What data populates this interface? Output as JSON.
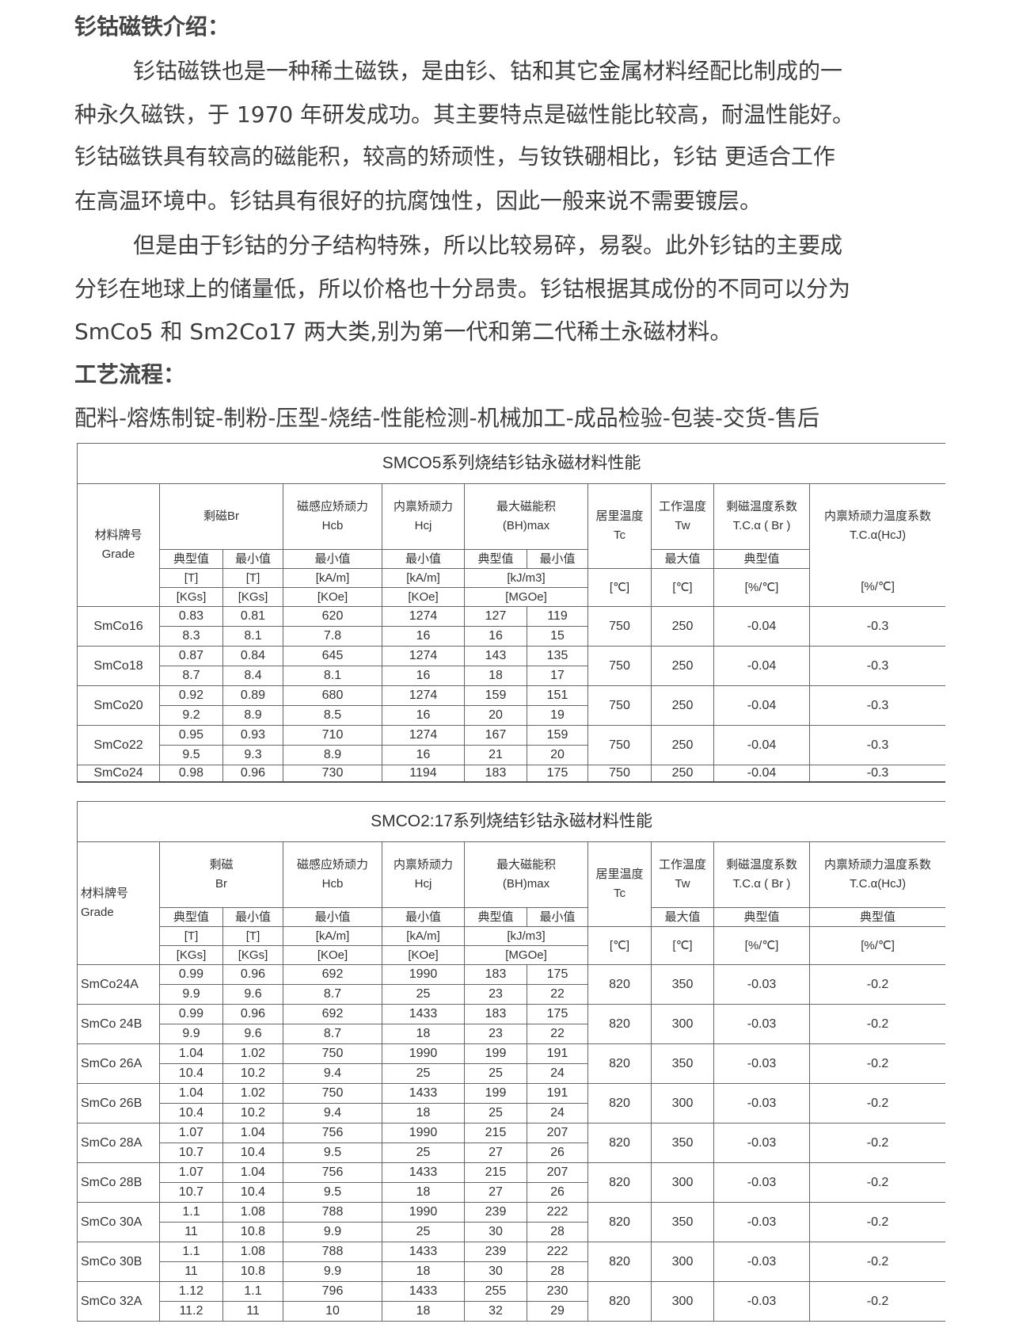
{
  "intro": {
    "heading": "钐钴磁铁介绍：",
    "lines": [
      "钐钴磁铁也是一种稀土磁铁，是由钐、钴和其它金属材料经配比制成的一",
      "种永久磁铁，于 1970 年研发成功。其主要特点是磁性能比较高，耐温性能好。",
      "钐钴磁铁具有较高的磁能积，较高的矫顽性，与钕铁硼相比，钐钴 更适合工作",
      "在高温环境中。钐钴具有很好的抗腐蚀性，因此一般来说不需要镀层。",
      "但是由于钐钴的分子结构特殊，所以比较易碎，易裂。此外钐钴的主要成",
      "分钐在地球上的储量低，所以价格也十分昂贵。钐钴根据其成份的不同可以分为",
      "SmCo5 和 Sm2Co17 两大类,别为第一代和第二代稀土永磁材料。"
    ]
  },
  "process": {
    "heading": "工艺流程：",
    "text": "配料-熔炼制锭-制粉-压型-烧结-性能检测-机械加工-成品检验-包装-交货-售后"
  },
  "header": {
    "grade": [
      "材料牌号",
      "Grade"
    ],
    "hcb": [
      "磁感应矫顽力",
      "Hcb"
    ],
    "hcj": [
      "内禀矫顽力",
      "Hcj"
    ],
    "bh": [
      "最大磁能积",
      "(BH)max"
    ],
    "tc": [
      "居里温度",
      "Tc"
    ],
    "tw": [
      "工作温度",
      "Tw"
    ],
    "tcbr": [
      "剩磁温度系数",
      "T.C.α ( Br )"
    ],
    "tchcj": [
      "内禀矫顽力温度系数",
      "T.C.α(HcJ)"
    ],
    "typical": "典型值",
    "min": "最小值",
    "max": "最大值",
    "unitsT": "[T]",
    "unitsKGs": "[KGs]",
    "unitsKAm": "[kA/m]",
    "unitsKOe": "[KOe]",
    "unitsKJ": "[kJ/m3]",
    "unitsMGOe": "[MGOe]",
    "unitsC": "[℃]",
    "unitsPct": "[%/℃]"
  },
  "tables": [
    {
      "title": "SMCO5系列烧结钐钴永磁材料性能",
      "br_label": [
        "剩磁Br"
      ],
      "rows": [
        {
          "grade": "SmCo16",
          "t": [
            "0.83",
            "0.81",
            "620",
            "1274",
            "127",
            "119"
          ],
          "k": [
            "8.3",
            "8.1",
            "7.8",
            "16",
            "16",
            "15"
          ],
          "tc": "750",
          "tw": "250",
          "tcbr": "-0.04",
          "tchcj": "-0.3"
        },
        {
          "grade": "SmCo18",
          "t": [
            "0.87",
            "0.84",
            "645",
            "1274",
            "143",
            "135"
          ],
          "k": [
            "8.7",
            "8.4",
            "8.1",
            "16",
            "18",
            "17"
          ],
          "tc": "750",
          "tw": "250",
          "tcbr": "-0.04",
          "tchcj": "-0.3"
        },
        {
          "grade": "SmCo20",
          "t": [
            "0.92",
            "0.89",
            "680",
            "1274",
            "159",
            "151"
          ],
          "k": [
            "9.2",
            "8.9",
            "8.5",
            "16",
            "20",
            "19"
          ],
          "tc": "750",
          "tw": "250",
          "tcbr": "-0.04",
          "tchcj": "-0.3"
        },
        {
          "grade": "SmCo22",
          "t": [
            "0.95",
            "0.93",
            "710",
            "1274",
            "167",
            "159"
          ],
          "k": [
            "9.5",
            "9.3",
            "8.9",
            "16",
            "21",
            "20"
          ],
          "tc": "750",
          "tw": "250",
          "tcbr": "-0.04",
          "tchcj": "-0.3"
        },
        {
          "grade": "SmCo24",
          "t": [
            "0.98",
            "0.96",
            "730",
            "1194",
            "183",
            "175"
          ],
          "tc": "750",
          "tw": "250",
          "tcbr": "-0.04",
          "tchcj": "-0.3",
          "truncated": true
        }
      ]
    },
    {
      "title": "SMCO2:17系列烧结钐钴永磁材料性能",
      "br_label": [
        "剩磁",
        "Br"
      ],
      "rows": [
        {
          "grade": "SmCo24A",
          "t": [
            "0.99",
            "0.96",
            "692",
            "1990",
            "183",
            "175"
          ],
          "k": [
            "9.9",
            "9.6",
            "8.7",
            "25",
            "23",
            "22"
          ],
          "tc": "820",
          "tw": "350",
          "tcbr": "-0.03",
          "tchcj": "-0.2"
        },
        {
          "grade": "SmCo 24B",
          "t": [
            "0.99",
            "0.96",
            "692",
            "1433",
            "183",
            "175"
          ],
          "k": [
            "9.9",
            "9.6",
            "8.7",
            "18",
            "23",
            "22"
          ],
          "tc": "820",
          "tw": "300",
          "tcbr": "-0.03",
          "tchcj": "-0.2"
        },
        {
          "grade": "SmCo 26A",
          "t": [
            "1.04",
            "1.02",
            "750",
            "1990",
            "199",
            "191"
          ],
          "k": [
            "10.4",
            "10.2",
            "9.4",
            "25",
            "25",
            "24"
          ],
          "tc": "820",
          "tw": "350",
          "tcbr": "-0.03",
          "tchcj": "-0.2"
        },
        {
          "grade": "SmCo 26B",
          "t": [
            "1.04",
            "1.02",
            "750",
            "1433",
            "199",
            "191"
          ],
          "k": [
            "10.4",
            "10.2",
            "9.4",
            "18",
            "25",
            "24"
          ],
          "tc": "820",
          "tw": "300",
          "tcbr": "-0.03",
          "tchcj": "-0.2"
        },
        {
          "grade": "SmCo 28A",
          "t": [
            "1.07",
            "1.04",
            "756",
            "1990",
            "215",
            "207"
          ],
          "k": [
            "10.7",
            "10.4",
            "9.5",
            "25",
            "27",
            "26"
          ],
          "tc": "820",
          "tw": "350",
          "tcbr": "-0.03",
          "tchcj": "-0.2"
        },
        {
          "grade": "SmCo 28B",
          "t": [
            "1.07",
            "1.04",
            "756",
            "1433",
            "215",
            "207"
          ],
          "k": [
            "10.7",
            "10.4",
            "9.5",
            "18",
            "27",
            "26"
          ],
          "tc": "820",
          "tw": "300",
          "tcbr": "-0.03",
          "tchcj": "-0.2"
        },
        {
          "grade": "SmCo 30A",
          "t": [
            "1.1",
            "1.08",
            "788",
            "1990",
            "239",
            "222"
          ],
          "k": [
            "11",
            "10.8",
            "9.9",
            "25",
            "30",
            "28"
          ],
          "tc": "820",
          "tw": "350",
          "tcbr": "-0.03",
          "tchcj": "-0.2"
        },
        {
          "grade": "SmCo 30B",
          "t": [
            "1.1",
            "1.08",
            "788",
            "1433",
            "239",
            "222"
          ],
          "k": [
            "11",
            "10.8",
            "9.9",
            "18",
            "30",
            "28"
          ],
          "tc": "820",
          "tw": "300",
          "tcbr": "-0.03",
          "tchcj": "-0.2"
        },
        {
          "grade": "SmCo 32A",
          "t": [
            "1.12",
            "1.1",
            "796",
            "1433",
            "255",
            "230"
          ],
          "k": [
            "11.2",
            "11",
            "10",
            "18",
            "32",
            "29"
          ],
          "tc": "820",
          "tw": "300",
          "tcbr": "-0.03",
          "tchcj": "-0.2"
        }
      ]
    }
  ]
}
